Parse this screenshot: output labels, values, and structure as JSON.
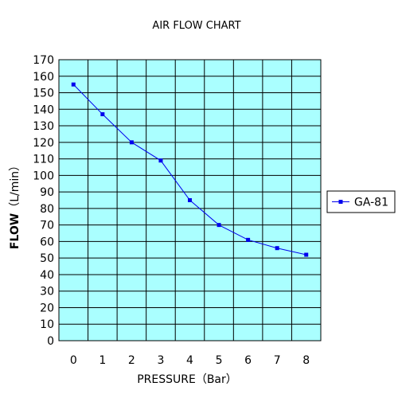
{
  "chart_data": {
    "type": "line",
    "title": "AIR FLOW CHART",
    "xlabel": "PRESSURE（Bar）",
    "ylabel": "FLOW（L/min）",
    "ylabel_main": "FLOW",
    "ylabel_unit": "（L/min）",
    "xlim": [
      0,
      8
    ],
    "ylim": [
      0,
      170
    ],
    "xticks": [
      0,
      1,
      2,
      3,
      4,
      5,
      6,
      7,
      8
    ],
    "yticks": [
      0,
      10,
      20,
      30,
      40,
      50,
      60,
      70,
      80,
      90,
      100,
      110,
      120,
      130,
      140,
      150,
      160,
      170
    ],
    "grid": true,
    "legend_position": "right",
    "plot_background": "#aaffff",
    "series": [
      {
        "name": "GA-81",
        "color": "#0000ee",
        "x": [
          0,
          1,
          2,
          3,
          4,
          5,
          6,
          7,
          8
        ],
        "y": [
          155,
          137,
          120,
          109,
          85,
          70,
          61,
          56,
          52
        ]
      }
    ]
  }
}
